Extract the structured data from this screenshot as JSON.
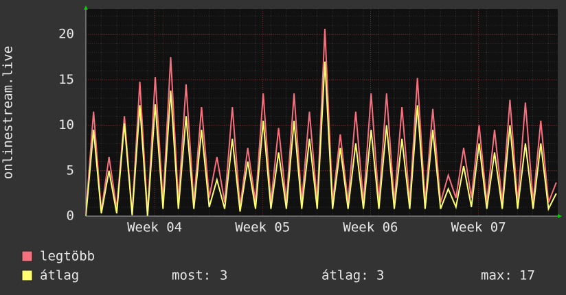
{
  "chart_data": {
    "type": "line",
    "y_label": "onlinestream.live",
    "x": [
      0,
      0.5,
      1,
      1.5,
      2,
      2.5,
      3,
      3.5,
      4,
      4.5,
      5,
      5.5,
      6,
      6.5,
      7,
      7.5,
      8,
      8.5,
      9,
      9.5,
      10,
      10.5,
      11,
      11.5,
      12,
      12.5,
      13,
      13.5,
      14,
      14.5,
      15,
      15.5,
      16,
      16.5,
      17,
      17.5,
      18,
      18.5,
      19,
      19.5,
      20,
      20.5,
      21,
      21.5,
      22,
      22.5,
      23,
      23.5,
      24,
      24.5,
      25,
      25.5,
      26,
      26.5,
      27,
      27.5,
      28,
      28.5,
      29,
      29.5,
      30,
      30.5
    ],
    "series": [
      {
        "name": "legtöbb",
        "color": "#f7707e",
        "values": [
          0.3,
          11.5,
          0.5,
          6.5,
          0.8,
          11,
          0.3,
          14.8,
          0.2,
          15.3,
          1.5,
          17.5,
          1.5,
          14.5,
          1.5,
          12,
          2,
          6.5,
          1.5,
          12,
          1,
          7.5,
          1.5,
          13.5,
          1.5,
          9.7,
          1.5,
          13.5,
          1.5,
          11.5,
          1.5,
          20.6,
          1.5,
          9,
          1.5,
          11.5,
          1.5,
          13.5,
          1.5,
          13.5,
          1.5,
          12,
          1.5,
          15.2,
          1.5,
          11.8,
          1.5,
          4.5,
          2,
          7.5,
          2,
          10,
          1.5,
          9.5,
          1.5,
          12.8,
          1.5,
          12.5,
          1.5,
          10.5,
          1.5,
          3.7
        ]
      },
      {
        "name": "átlag",
        "color": "#ffff70",
        "values": [
          0,
          9.5,
          0.3,
          5,
          0.3,
          10.2,
          0.1,
          12.2,
          0,
          12.3,
          0.8,
          13.8,
          0.8,
          11,
          0.8,
          9.5,
          1,
          4,
          0.8,
          8.5,
          0.5,
          6,
          0.8,
          10.5,
          0.8,
          7,
          0.8,
          10.5,
          0.8,
          8.5,
          0.8,
          17,
          0.8,
          7.5,
          0.8,
          8,
          0.8,
          9.5,
          0.8,
          10,
          0.8,
          8.5,
          0.8,
          12.2,
          0.8,
          9.5,
          0.8,
          3,
          1,
          5.5,
          1,
          8,
          0.8,
          7,
          0.8,
          10,
          0.8,
          8,
          0.8,
          8,
          0.8,
          2.5
        ]
      }
    ],
    "xlim": [
      0,
      30.6
    ],
    "xticks": [
      {
        "value": 4.46,
        "label": "Week 04"
      },
      {
        "value": 11.46,
        "label": "Week 05"
      },
      {
        "value": 18.46,
        "label": "Week 06"
      },
      {
        "value": 25.46,
        "label": "Week 07"
      }
    ],
    "ylim": [
      0,
      22.8
    ],
    "yticks": [
      0,
      5,
      10,
      15,
      20
    ],
    "grid": true,
    "stats": [
      {
        "label": "most:",
        "value": 3
      },
      {
        "label": "átlag:",
        "value": 3
      },
      {
        "label": "max:",
        "value": 17
      }
    ]
  }
}
